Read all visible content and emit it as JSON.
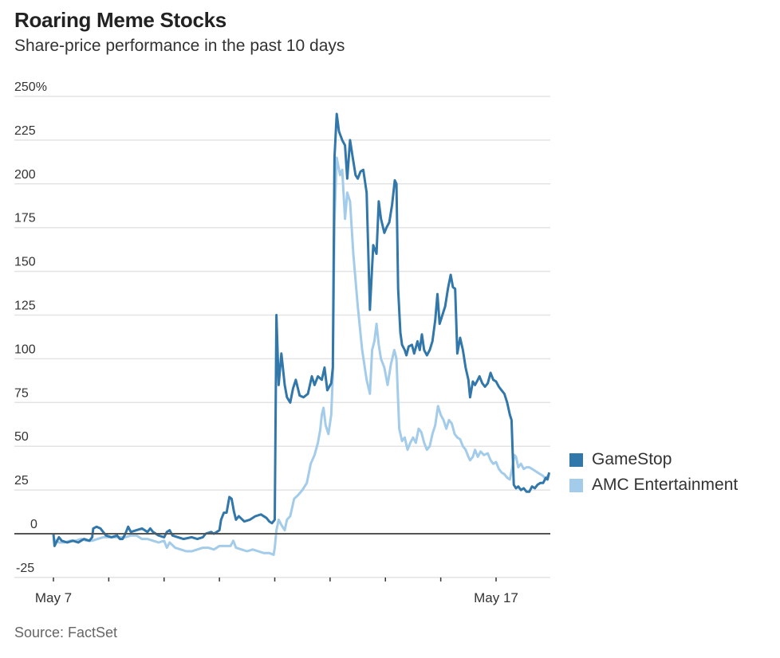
{
  "header": {
    "title": "Roaring Meme Stocks",
    "subtitle": "Share-price performance in the past 10 days"
  },
  "source": "Source: FactSet",
  "colors": {
    "gamestop": "#3277aa",
    "amc": "#a3cbea",
    "zero_line": "#555555",
    "grid": "#e3e3e3"
  },
  "chart_data": {
    "type": "line",
    "title": "Roaring Meme Stocks",
    "subtitle": "Share-price performance in the past 10 days",
    "xlabel": "",
    "ylabel": "",
    "x_unit": "trading days since May 7",
    "ylim": [
      -25,
      250
    ],
    "xlim": [
      0,
      8.97
    ],
    "grid": true,
    "y_ticks": [
      {
        "value": 250,
        "label": "250%"
      },
      {
        "value": 225,
        "label": "225"
      },
      {
        "value": 200,
        "label": "200"
      },
      {
        "value": 175,
        "label": "175"
      },
      {
        "value": 150,
        "label": "150"
      },
      {
        "value": 125,
        "label": "125"
      },
      {
        "value": 100,
        "label": "100"
      },
      {
        "value": 75,
        "label": "75"
      },
      {
        "value": 50,
        "label": "50"
      },
      {
        "value": 25,
        "label": "25"
      },
      {
        "value": 0,
        "label": "0"
      },
      {
        "value": -25,
        "label": "-25"
      }
    ],
    "x_ticks": [
      {
        "value": 0,
        "label": "May 7"
      },
      {
        "value": 1,
        "label": ""
      },
      {
        "value": 2,
        "label": ""
      },
      {
        "value": 3,
        "label": ""
      },
      {
        "value": 4,
        "label": ""
      },
      {
        "value": 5,
        "label": ""
      },
      {
        "value": 6,
        "label": ""
      },
      {
        "value": 7,
        "label": ""
      },
      {
        "value": 8,
        "label": "May 17"
      }
    ],
    "legend_position": "right",
    "series": [
      {
        "name": "GameStop",
        "color": "#3277aa",
        "points": [
          [
            0.0,
            0
          ],
          [
            0.02,
            -7
          ],
          [
            0.05,
            -5
          ],
          [
            0.1,
            -2
          ],
          [
            0.15,
            -4
          ],
          [
            0.25,
            -5
          ],
          [
            0.35,
            -4
          ],
          [
            0.45,
            -5
          ],
          [
            0.55,
            -3
          ],
          [
            0.65,
            -4
          ],
          [
            0.7,
            -2
          ],
          [
            0.72,
            3
          ],
          [
            0.78,
            4
          ],
          [
            0.85,
            3
          ],
          [
            0.9,
            1
          ],
          [
            0.95,
            -1
          ],
          [
            1.05,
            -2
          ],
          [
            1.15,
            -1
          ],
          [
            1.2,
            -3
          ],
          [
            1.25,
            -3
          ],
          [
            1.3,
            0
          ],
          [
            1.35,
            4
          ],
          [
            1.4,
            1
          ],
          [
            1.5,
            2
          ],
          [
            1.6,
            3
          ],
          [
            1.7,
            1
          ],
          [
            1.75,
            3
          ],
          [
            1.8,
            1
          ],
          [
            1.9,
            -1
          ],
          [
            2.0,
            -2
          ],
          [
            2.05,
            1
          ],
          [
            2.1,
            2
          ],
          [
            2.15,
            -1
          ],
          [
            2.25,
            -2
          ],
          [
            2.35,
            -3
          ],
          [
            2.5,
            -2
          ],
          [
            2.6,
            -3
          ],
          [
            2.7,
            -2
          ],
          [
            2.75,
            0
          ],
          [
            2.85,
            1
          ],
          [
            2.9,
            0
          ],
          [
            2.95,
            1
          ],
          [
            3.0,
            2
          ],
          [
            3.03,
            8
          ],
          [
            3.08,
            12
          ],
          [
            3.13,
            12
          ],
          [
            3.18,
            21
          ],
          [
            3.22,
            20
          ],
          [
            3.26,
            13
          ],
          [
            3.3,
            8
          ],
          [
            3.35,
            10
          ],
          [
            3.45,
            7
          ],
          [
            3.55,
            8
          ],
          [
            3.65,
            10
          ],
          [
            3.75,
            11
          ],
          [
            3.85,
            9
          ],
          [
            3.9,
            7
          ],
          [
            3.95,
            6
          ],
          [
            4.0,
            8
          ],
          [
            4.03,
            125
          ],
          [
            4.07,
            85
          ],
          [
            4.12,
            103
          ],
          [
            4.18,
            85
          ],
          [
            4.22,
            78
          ],
          [
            4.28,
            75
          ],
          [
            4.33,
            83
          ],
          [
            4.38,
            88
          ],
          [
            4.45,
            79
          ],
          [
            4.52,
            78
          ],
          [
            4.6,
            80
          ],
          [
            4.67,
            90
          ],
          [
            4.72,
            85
          ],
          [
            4.78,
            90
          ],
          [
            4.85,
            88
          ],
          [
            4.9,
            95
          ],
          [
            4.95,
            82
          ],
          [
            5.02,
            86
          ],
          [
            5.05,
            95
          ],
          [
            5.08,
            215
          ],
          [
            5.12,
            240
          ],
          [
            5.16,
            230
          ],
          [
            5.22,
            225
          ],
          [
            5.27,
            222
          ],
          [
            5.31,
            203
          ],
          [
            5.36,
            225
          ],
          [
            5.41,
            215
          ],
          [
            5.46,
            205
          ],
          [
            5.5,
            203
          ],
          [
            5.55,
            207
          ],
          [
            5.6,
            208
          ],
          [
            5.66,
            195
          ],
          [
            5.72,
            128
          ],
          [
            5.78,
            165
          ],
          [
            5.84,
            160
          ],
          [
            5.88,
            190
          ],
          [
            5.92,
            180
          ],
          [
            5.98,
            172
          ],
          [
            6.02,
            175
          ],
          [
            6.07,
            178
          ],
          [
            6.12,
            188
          ],
          [
            6.17,
            202
          ],
          [
            6.2,
            200
          ],
          [
            6.23,
            140
          ],
          [
            6.27,
            115
          ],
          [
            6.3,
            108
          ],
          [
            6.35,
            105
          ],
          [
            6.38,
            102
          ],
          [
            6.42,
            107
          ],
          [
            6.48,
            108
          ],
          [
            6.52,
            103
          ],
          [
            6.58,
            110
          ],
          [
            6.62,
            105
          ],
          [
            6.66,
            114
          ],
          [
            6.7,
            105
          ],
          [
            6.75,
            102
          ],
          [
            6.8,
            105
          ],
          [
            6.85,
            110
          ],
          [
            6.9,
            122
          ],
          [
            6.94,
            137
          ],
          [
            6.98,
            120
          ],
          [
            7.03,
            125
          ],
          [
            7.08,
            130
          ],
          [
            7.13,
            140
          ],
          [
            7.18,
            148
          ],
          [
            7.22,
            141
          ],
          [
            7.26,
            140
          ],
          [
            7.3,
            103
          ],
          [
            7.35,
            112
          ],
          [
            7.4,
            105
          ],
          [
            7.45,
            95
          ],
          [
            7.5,
            88
          ],
          [
            7.53,
            78
          ],
          [
            7.58,
            87
          ],
          [
            7.62,
            85
          ],
          [
            7.67,
            88
          ],
          [
            7.7,
            90
          ],
          [
            7.75,
            86
          ],
          [
            7.8,
            84
          ],
          [
            7.85,
            86
          ],
          [
            7.9,
            92
          ],
          [
            7.95,
            88
          ],
          [
            8.0,
            87
          ],
          [
            8.05,
            84
          ],
          [
            8.1,
            82
          ],
          [
            8.15,
            80
          ],
          [
            8.2,
            75
          ],
          [
            8.25,
            68
          ],
          [
            8.28,
            65
          ],
          [
            8.32,
            28
          ],
          [
            8.36,
            26
          ],
          [
            8.4,
            27
          ],
          [
            8.45,
            25
          ],
          [
            8.5,
            26
          ],
          [
            8.55,
            24
          ],
          [
            8.6,
            24
          ],
          [
            8.65,
            27
          ],
          [
            8.7,
            26
          ],
          [
            8.75,
            28
          ],
          [
            8.8,
            29
          ],
          [
            8.85,
            29
          ],
          [
            8.9,
            32
          ],
          [
            8.93,
            31
          ],
          [
            8.96,
            35
          ]
        ]
      },
      {
        "name": "AMC Entertainment",
        "color": "#a3cbea",
        "points": [
          [
            0.0,
            -3
          ],
          [
            0.1,
            -5
          ],
          [
            0.2,
            -5
          ],
          [
            0.3,
            -4
          ],
          [
            0.4,
            -4
          ],
          [
            0.5,
            -3
          ],
          [
            0.6,
            -4
          ],
          [
            0.7,
            -4
          ],
          [
            0.8,
            -3
          ],
          [
            0.9,
            -2
          ],
          [
            1.0,
            -2
          ],
          [
            1.1,
            -2
          ],
          [
            1.2,
            -2
          ],
          [
            1.3,
            -2
          ],
          [
            1.4,
            -1
          ],
          [
            1.5,
            -1
          ],
          [
            1.6,
            -3
          ],
          [
            1.7,
            -3
          ],
          [
            1.8,
            -4
          ],
          [
            1.9,
            -5
          ],
          [
            2.0,
            -4
          ],
          [
            2.05,
            -8
          ],
          [
            2.1,
            -5
          ],
          [
            2.2,
            -8
          ],
          [
            2.3,
            -9
          ],
          [
            2.4,
            -10
          ],
          [
            2.5,
            -10
          ],
          [
            2.6,
            -9
          ],
          [
            2.7,
            -8
          ],
          [
            2.8,
            -8
          ],
          [
            2.9,
            -9
          ],
          [
            3.0,
            -7
          ],
          [
            3.1,
            -7
          ],
          [
            3.2,
            -7
          ],
          [
            3.25,
            -4
          ],
          [
            3.3,
            -8
          ],
          [
            3.4,
            -9
          ],
          [
            3.5,
            -10
          ],
          [
            3.6,
            -9
          ],
          [
            3.7,
            -10
          ],
          [
            3.8,
            -11
          ],
          [
            3.9,
            -11
          ],
          [
            3.98,
            -12
          ],
          [
            4.0,
            -8
          ],
          [
            4.03,
            2
          ],
          [
            4.07,
            8
          ],
          [
            4.12,
            5
          ],
          [
            4.18,
            2
          ],
          [
            4.22,
            8
          ],
          [
            4.28,
            10
          ],
          [
            4.35,
            20
          ],
          [
            4.42,
            22
          ],
          [
            4.5,
            25
          ],
          [
            4.58,
            29
          ],
          [
            4.65,
            40
          ],
          [
            4.72,
            45
          ],
          [
            4.78,
            52
          ],
          [
            4.82,
            59
          ],
          [
            4.85,
            68
          ],
          [
            4.88,
            72
          ],
          [
            4.92,
            62
          ],
          [
            4.97,
            57
          ],
          [
            5.02,
            68
          ],
          [
            5.05,
            90
          ],
          [
            5.08,
            180
          ],
          [
            5.12,
            215
          ],
          [
            5.18,
            205
          ],
          [
            5.22,
            208
          ],
          [
            5.27,
            180
          ],
          [
            5.31,
            195
          ],
          [
            5.36,
            190
          ],
          [
            5.42,
            160
          ],
          [
            5.5,
            130
          ],
          [
            5.58,
            105
          ],
          [
            5.66,
            88
          ],
          [
            5.72,
            80
          ],
          [
            5.76,
            105
          ],
          [
            5.8,
            110
          ],
          [
            5.84,
            120
          ],
          [
            5.88,
            108
          ],
          [
            5.92,
            100
          ],
          [
            5.98,
            95
          ],
          [
            6.04,
            85
          ],
          [
            6.1,
            97
          ],
          [
            6.16,
            105
          ],
          [
            6.2,
            100
          ],
          [
            6.25,
            60
          ],
          [
            6.3,
            53
          ],
          [
            6.35,
            55
          ],
          [
            6.4,
            48
          ],
          [
            6.45,
            52
          ],
          [
            6.5,
            55
          ],
          [
            6.55,
            52
          ],
          [
            6.6,
            60
          ],
          [
            6.65,
            58
          ],
          [
            6.7,
            52
          ],
          [
            6.75,
            48
          ],
          [
            6.8,
            50
          ],
          [
            6.85,
            57
          ],
          [
            6.9,
            62
          ],
          [
            6.95,
            73
          ],
          [
            7.0,
            68
          ],
          [
            7.05,
            65
          ],
          [
            7.1,
            60
          ],
          [
            7.15,
            65
          ],
          [
            7.2,
            63
          ],
          [
            7.25,
            57
          ],
          [
            7.3,
            55
          ],
          [
            7.35,
            54
          ],
          [
            7.4,
            50
          ],
          [
            7.45,
            48
          ],
          [
            7.5,
            44
          ],
          [
            7.53,
            42
          ],
          [
            7.58,
            44
          ],
          [
            7.62,
            48
          ],
          [
            7.67,
            44
          ],
          [
            7.72,
            47
          ],
          [
            7.78,
            45
          ],
          [
            7.85,
            46
          ],
          [
            7.9,
            42
          ],
          [
            7.95,
            40
          ],
          [
            8.0,
            41
          ],
          [
            8.05,
            37
          ],
          [
            8.1,
            35
          ],
          [
            8.15,
            34
          ],
          [
            8.2,
            32
          ],
          [
            8.25,
            31
          ],
          [
            8.3,
            39
          ],
          [
            8.33,
            45
          ],
          [
            8.36,
            44
          ],
          [
            8.4,
            38
          ],
          [
            8.45,
            40
          ],
          [
            8.5,
            37
          ],
          [
            8.55,
            38
          ],
          [
            8.6,
            38
          ],
          [
            8.65,
            37
          ],
          [
            8.7,
            36
          ],
          [
            8.75,
            35
          ],
          [
            8.8,
            34
          ],
          [
            8.85,
            33
          ],
          [
            8.9,
            31
          ],
          [
            8.93,
            33
          ],
          [
            8.96,
            34
          ]
        ]
      }
    ]
  }
}
